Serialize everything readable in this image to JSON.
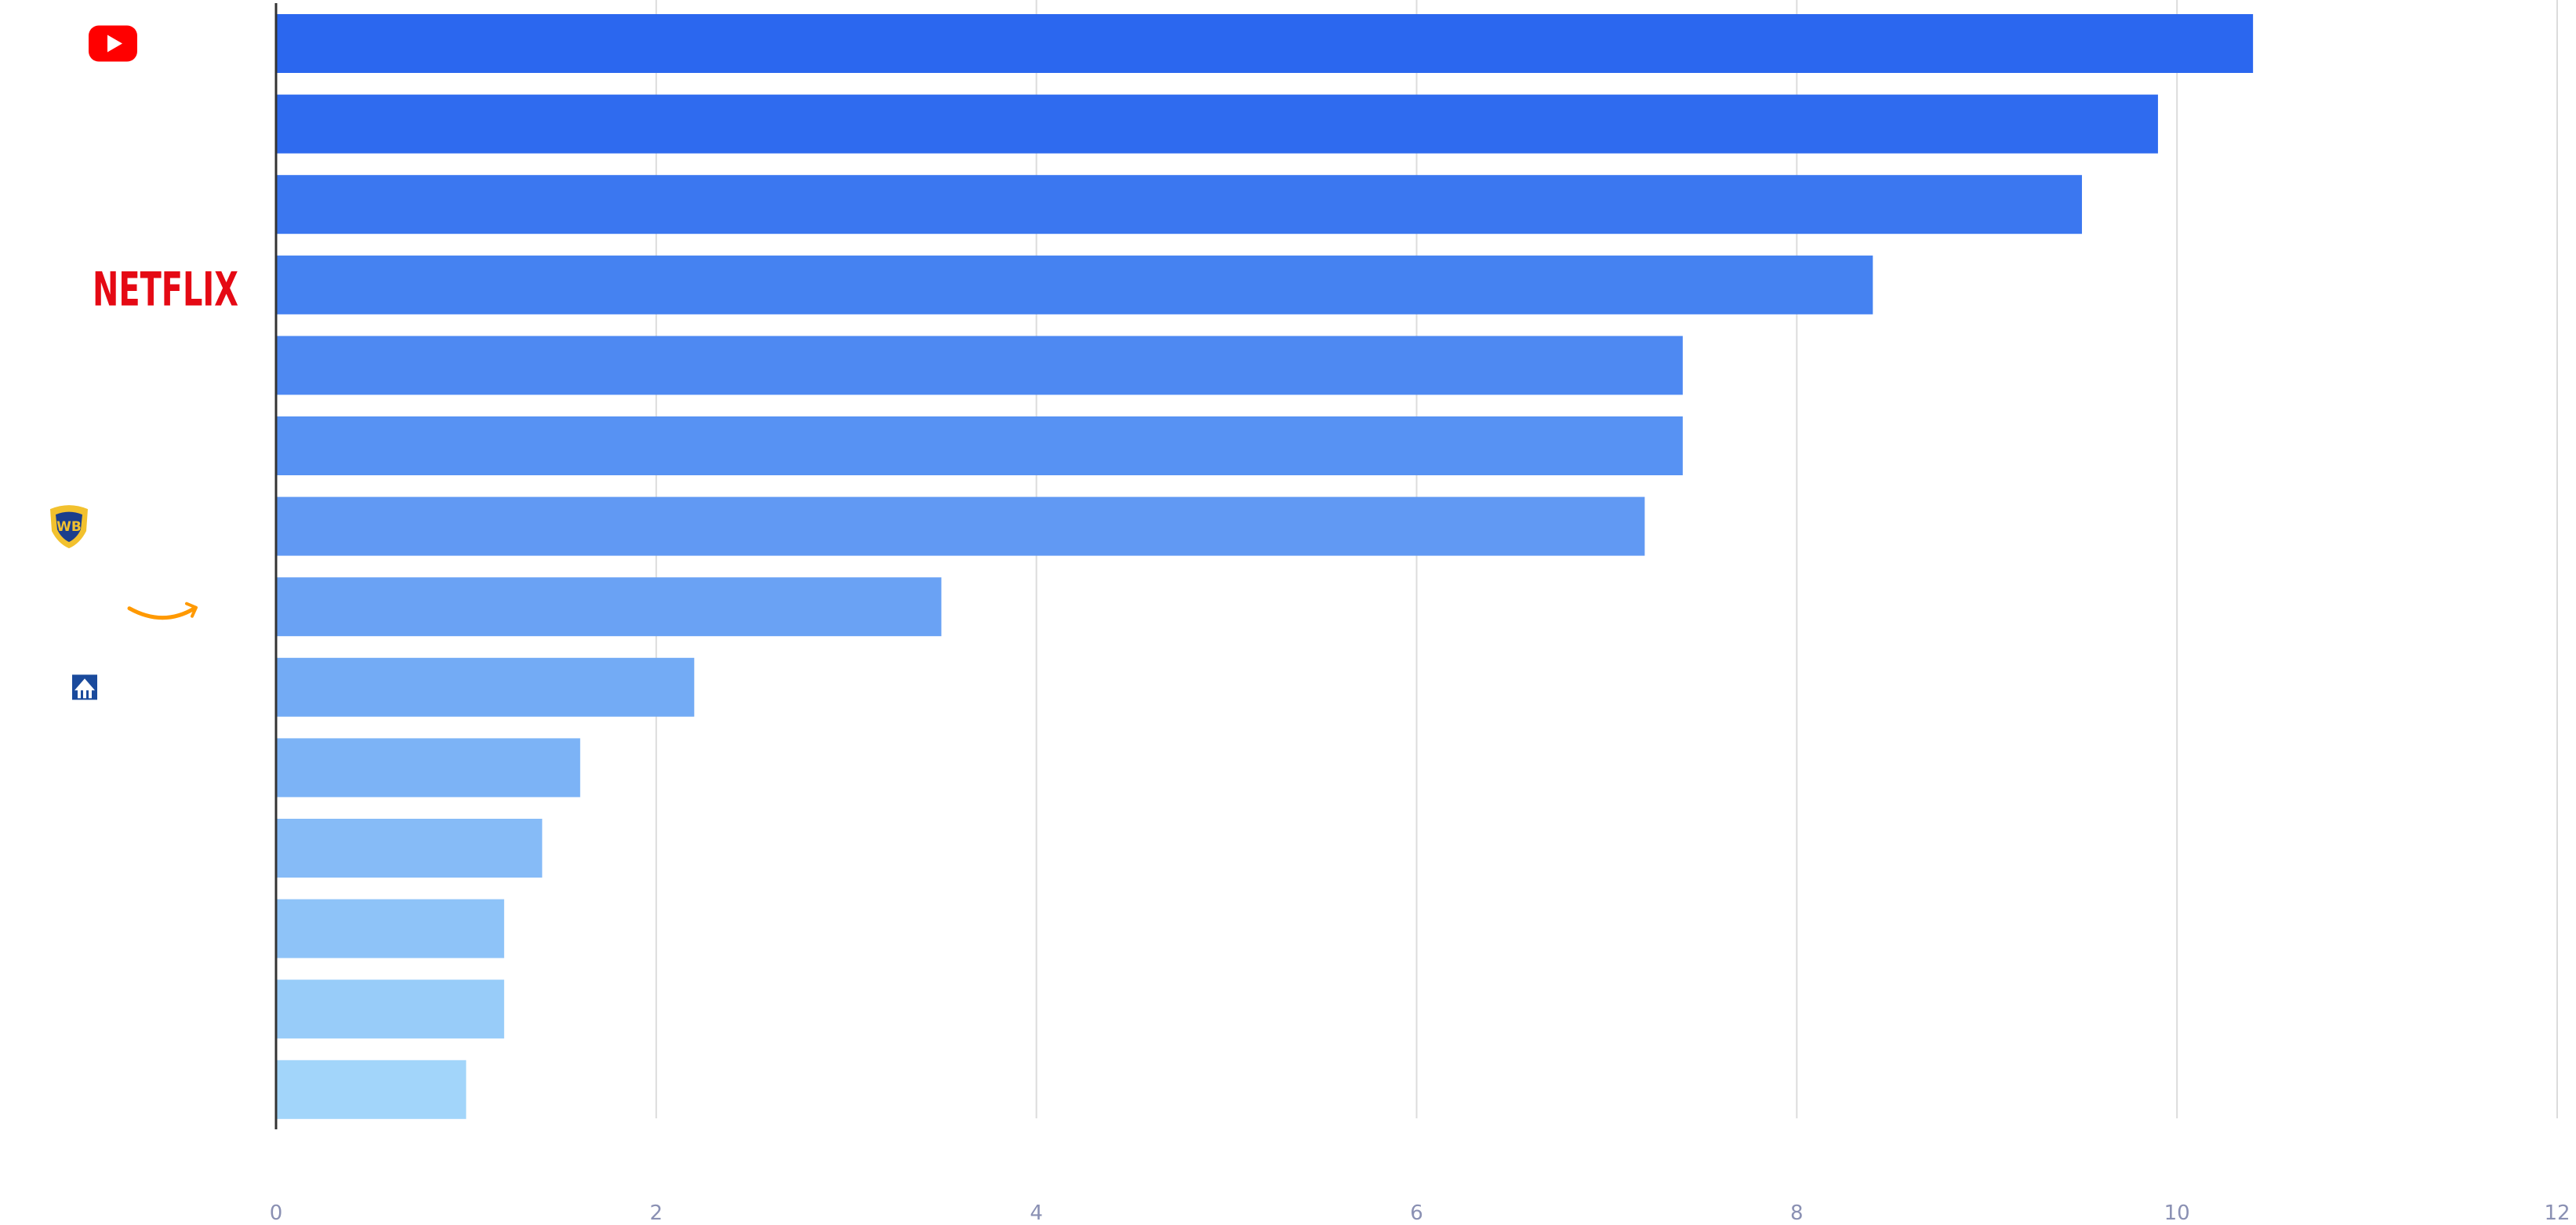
{
  "chart_data": {
    "type": "bar",
    "orientation": "horizontal",
    "title": "",
    "xlabel": "",
    "ylabel": "",
    "xlim": [
      0,
      12
    ],
    "x_ticks": [
      "0",
      "2",
      "4",
      "6",
      "8",
      "10",
      "12"
    ],
    "grid": true,
    "categories": [
      "YouTube",
      "",
      "",
      "Netflix",
      "",
      "",
      "Warner Bros.",
      "Amazon",
      "Paramount",
      "",
      "",
      "",
      "",
      ""
    ],
    "values": [
      10.4,
      9.9,
      9.5,
      8.4,
      7.4,
      7.4,
      7.2,
      3.5,
      2.2,
      1.6,
      1.4,
      1.2,
      1.2,
      1.0
    ],
    "bar_colors": [
      "#2b67ef",
      "#2f6bef",
      "#3b77f0",
      "#4582f1",
      "#4e89f2",
      "#5792f3",
      "#6199f3",
      "#6aa2f4",
      "#73abf5",
      "#7cb3f6",
      "#86bbf7",
      "#8ec3f8",
      "#98ccf9",
      "#a2d5fa"
    ],
    "logos": [
      {
        "row": 0,
        "icon": "youtube-logo-icon",
        "text": "",
        "color": "#ff0000"
      },
      {
        "row": 3,
        "icon": "netflix-logo-icon",
        "text": "NETFLIX",
        "color": "#e50914"
      },
      {
        "row": 6,
        "icon": "warner-bros-shield-icon",
        "text": "WB",
        "color": "#1b3e8c"
      },
      {
        "row": 7,
        "icon": "amazon-smile-arrow-icon",
        "text": "",
        "color": "#ff9900"
      },
      {
        "row": 8,
        "icon": "paramount-mountain-icon",
        "text": "",
        "color": "#1a4a9c"
      }
    ]
  }
}
